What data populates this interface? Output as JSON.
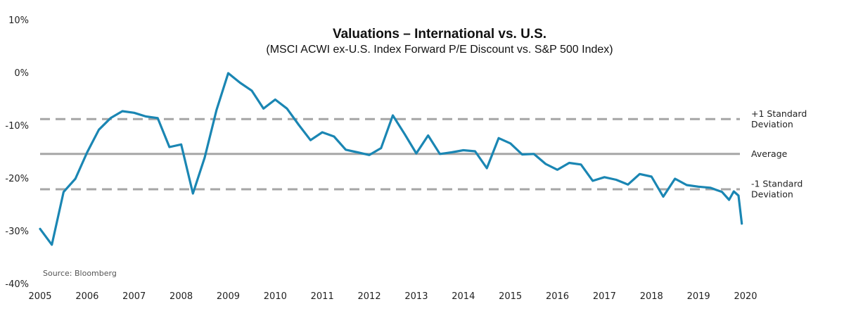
{
  "chart_data": {
    "type": "line",
    "title": "Valuations – International vs. U.S.",
    "subtitle": "(MSCI ACWI ex-U.S. Index Forward P/E Discount vs. S&P 500 Index)",
    "xlabel": "",
    "ylabel": "",
    "xlim": [
      2005,
      2020
    ],
    "ylim": [
      -40,
      10
    ],
    "x_ticks": [
      2005,
      2006,
      2007,
      2008,
      2009,
      2010,
      2011,
      2012,
      2013,
      2014,
      2015,
      2016,
      2017,
      2018,
      2019,
      2020
    ],
    "x_tick_labels": [
      "2005",
      "2006",
      "2007",
      "2008",
      "2009",
      "2010",
      "2011",
      "2012",
      "2013",
      "2014",
      "2015",
      "2016",
      "2017",
      "2018",
      "2019",
      "2020"
    ],
    "y_ticks": [
      10,
      0,
      -10,
      -20,
      -30,
      -40
    ],
    "y_tick_labels": [
      "10%",
      "0%",
      "-10%",
      "-20%",
      "-30%",
      "-40%"
    ],
    "grid": false,
    "series": [
      {
        "color": "#1a86b3",
        "x": [
          2005.0,
          2005.25,
          2005.5,
          2005.75,
          2006.0,
          2006.25,
          2006.5,
          2006.75,
          2007.0,
          2007.25,
          2007.5,
          2007.75,
          2008.0,
          2008.25,
          2008.5,
          2008.75,
          2009.0,
          2009.25,
          2009.5,
          2009.75,
          2010.0,
          2010.25,
          2010.5,
          2010.75,
          2011.0,
          2011.25,
          2011.5,
          2011.75,
          2012.0,
          2012.25,
          2012.5,
          2012.75,
          2013.0,
          2013.25,
          2013.5,
          2013.75,
          2014.0,
          2014.25,
          2014.5,
          2014.75,
          2015.0,
          2015.25,
          2015.5,
          2015.75,
          2016.0,
          2016.25,
          2016.5,
          2016.75,
          2017.0,
          2017.25,
          2017.5,
          2017.75,
          2018.0,
          2018.25,
          2018.5,
          2018.75,
          2019.0,
          2019.25,
          2019.5,
          2019.65,
          2019.75,
          2019.85,
          2019.92
        ],
        "y": [
          -29.5,
          -32.5,
          -22.5,
          -20.0,
          -15.0,
          -10.7,
          -8.5,
          -7.2,
          -7.5,
          -8.2,
          -8.5,
          -14.0,
          -13.5,
          -22.8,
          -16.0,
          -7.0,
          0.0,
          -1.8,
          -3.3,
          -6.7,
          -5.0,
          -6.7,
          -9.8,
          -12.7,
          -11.2,
          -12.0,
          -14.5,
          -15.0,
          -15.5,
          -14.2,
          -8.0,
          -11.5,
          -15.2,
          -11.8,
          -15.3,
          -15.0,
          -14.6,
          -14.8,
          -18.0,
          -12.3,
          -13.3,
          -15.4,
          -15.3,
          -17.2,
          -18.3,
          -17.0,
          -17.3,
          -20.4,
          -19.7,
          -20.2,
          -21.1,
          -19.1,
          -19.6,
          -23.4,
          -20.0,
          -21.2,
          -21.5,
          -21.7,
          -22.5,
          -24.0,
          -22.4,
          -23.2,
          -28.5
        ]
      }
    ],
    "reference_lines": [
      {
        "label": "+1 Standard Deviation",
        "label_lines": [
          "+1 Standard",
          "Deviation"
        ],
        "y": -8.7,
        "style": "dashed",
        "color": "#a6a6a6"
      },
      {
        "label": "Average",
        "label_lines": [
          "Average"
        ],
        "y": -15.3,
        "style": "solid",
        "color": "#a6a6a6"
      },
      {
        "label": "-1 Standard Deviation",
        "label_lines": [
          "-1 Standard",
          "Deviation"
        ],
        "y": -22.0,
        "style": "dashed",
        "color": "#a6a6a6"
      }
    ],
    "source_note": "Source: Bloomberg"
  }
}
